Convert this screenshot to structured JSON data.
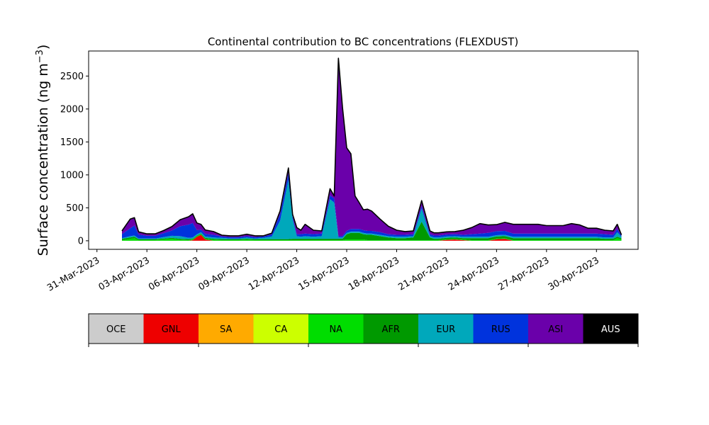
{
  "chart_data": {
    "type": "area",
    "stacked": true,
    "title": "Continental contribution to BC concentrations (FLEXDUST)",
    "ylabel": "Surface concentration (ng m",
    "ylabel_exp": "−3",
    "ylabel_close": ")",
    "xlim": [
      "2023-03-30T12:00",
      "2023-05-02T12:00"
    ],
    "ylim": [
      -130,
      2880
    ],
    "yticks": [
      0,
      500,
      1000,
      1500,
      2000,
      2500
    ],
    "xticks": [
      "31-Mar-2023",
      "03-Apr-2023",
      "06-Apr-2023",
      "09-Apr-2023",
      "12-Apr-2023",
      "15-Apr-2023",
      "18-Apr-2023",
      "21-Apr-2023",
      "24-Apr-2023",
      "27-Apr-2023",
      "30-Apr-2023"
    ],
    "xtick_dates": [
      "2023-03-31",
      "2023-04-03",
      "2023-04-06",
      "2023-04-09",
      "2023-04-12",
      "2023-04-15",
      "2023-04-18",
      "2023-04-21",
      "2023-04-24",
      "2023-04-27",
      "2023-04-30"
    ],
    "legend_placement": "below",
    "grid": false,
    "x": [
      "2023-04-01T12:00",
      "2023-04-02T00:00",
      "2023-04-02T06:00",
      "2023-04-02T12:00",
      "2023-04-03T00:00",
      "2023-04-03T12:00",
      "2023-04-04T00:00",
      "2023-04-04T12:00",
      "2023-04-05T00:00",
      "2023-04-05T12:00",
      "2023-04-05T18:00",
      "2023-04-06T00:00",
      "2023-04-06T06:00",
      "2023-04-06T12:00",
      "2023-04-07T00:00",
      "2023-04-07T12:00",
      "2023-04-08T00:00",
      "2023-04-08T12:00",
      "2023-04-09T00:00",
      "2023-04-09T12:00",
      "2023-04-10T00:00",
      "2023-04-10T12:00",
      "2023-04-11T00:00",
      "2023-04-11T12:00",
      "2023-04-11T18:00",
      "2023-04-12T00:00",
      "2023-04-12T06:00",
      "2023-04-12T12:00",
      "2023-04-13T00:00",
      "2023-04-13T12:00",
      "2023-04-14T00:00",
      "2023-04-14T06:00",
      "2023-04-14T12:00",
      "2023-04-14T18:00",
      "2023-04-15T00:00",
      "2023-04-15T06:00",
      "2023-04-15T12:00",
      "2023-04-15T18:00",
      "2023-04-16T00:00",
      "2023-04-16T06:00",
      "2023-04-16T12:00",
      "2023-04-17T00:00",
      "2023-04-17T12:00",
      "2023-04-18T00:00",
      "2023-04-18T12:00",
      "2023-04-19T00:00",
      "2023-04-19T12:00",
      "2023-04-20T00:00",
      "2023-04-20T06:00",
      "2023-04-20T12:00",
      "2023-04-21T00:00",
      "2023-04-21T12:00",
      "2023-04-22T00:00",
      "2023-04-22T12:00",
      "2023-04-23T00:00",
      "2023-04-23T12:00",
      "2023-04-24T00:00",
      "2023-04-24T12:00",
      "2023-04-25T00:00",
      "2023-04-25T12:00",
      "2023-04-26T00:00",
      "2023-04-26T12:00",
      "2023-04-27T00:00",
      "2023-04-27T12:00",
      "2023-04-28T00:00",
      "2023-04-28T12:00",
      "2023-04-29T00:00",
      "2023-04-29T12:00",
      "2023-04-30T00:00",
      "2023-04-30T12:00",
      "2023-05-01T00:00",
      "2023-05-01T06:00",
      "2023-05-01T12:00"
    ],
    "series": [
      {
        "name": "OCE",
        "color": "#cccccc",
        "values": [
          0,
          0,
          0,
          0,
          0,
          0,
          0,
          0,
          0,
          0,
          0,
          0,
          0,
          0,
          0,
          0,
          0,
          0,
          0,
          0,
          0,
          0,
          0,
          0,
          0,
          0,
          0,
          0,
          0,
          0,
          0,
          0,
          0,
          0,
          0,
          0,
          0,
          0,
          0,
          0,
          0,
          0,
          0,
          0,
          0,
          0,
          0,
          0,
          0,
          0,
          0,
          0,
          0,
          0,
          0,
          0,
          0,
          0,
          0,
          0,
          0,
          0,
          0,
          0,
          0,
          0,
          0,
          0,
          0,
          0,
          0,
          0,
          0
        ]
      },
      {
        "name": "GNL",
        "color": "#ee0000",
        "values": [
          0,
          0,
          0,
          0,
          0,
          0,
          0,
          0,
          0,
          0,
          10,
          60,
          90,
          20,
          0,
          0,
          0,
          0,
          0,
          0,
          0,
          0,
          0,
          0,
          0,
          0,
          0,
          0,
          0,
          0,
          0,
          0,
          0,
          0,
          0,
          0,
          0,
          0,
          0,
          0,
          0,
          0,
          0,
          0,
          0,
          0,
          0,
          0,
          0,
          0,
          15,
          20,
          10,
          0,
          0,
          0,
          25,
          30,
          0,
          0,
          0,
          0,
          0,
          0,
          0,
          0,
          0,
          0,
          0,
          0,
          0,
          0,
          0
        ]
      },
      {
        "name": "SA",
        "color": "#ffaa00",
        "values": [
          0,
          0,
          0,
          0,
          0,
          0,
          0,
          0,
          0,
          0,
          0,
          0,
          0,
          0,
          0,
          0,
          0,
          0,
          0,
          0,
          0,
          0,
          0,
          0,
          0,
          0,
          0,
          0,
          0,
          0,
          0,
          0,
          0,
          0,
          0,
          0,
          0,
          0,
          0,
          0,
          0,
          0,
          0,
          0,
          0,
          0,
          0,
          0,
          0,
          0,
          0,
          0,
          0,
          0,
          0,
          0,
          0,
          0,
          0,
          0,
          0,
          0,
          0,
          0,
          0,
          0,
          0,
          0,
          0,
          0,
          0,
          0,
          0
        ]
      },
      {
        "name": "CA",
        "color": "#ccff00",
        "values": [
          0,
          0,
          0,
          0,
          0,
          0,
          0,
          0,
          0,
          0,
          0,
          0,
          0,
          0,
          0,
          0,
          0,
          0,
          0,
          0,
          0,
          0,
          0,
          0,
          0,
          0,
          0,
          0,
          0,
          0,
          0,
          0,
          0,
          0,
          0,
          0,
          0,
          0,
          0,
          0,
          0,
          0,
          0,
          0,
          0,
          0,
          0,
          0,
          0,
          0,
          0,
          0,
          0,
          0,
          0,
          0,
          0,
          0,
          0,
          0,
          0,
          0,
          0,
          0,
          0,
          0,
          0,
          0,
          0,
          0,
          0,
          0,
          0
        ]
      },
      {
        "name": "NA",
        "color": "#00dd00",
        "values": [
          10,
          30,
          40,
          10,
          10,
          10,
          20,
          30,
          15,
          10,
          10,
          10,
          10,
          10,
          15,
          10,
          10,
          10,
          15,
          10,
          10,
          10,
          10,
          10,
          10,
          10,
          10,
          10,
          10,
          10,
          10,
          10,
          10,
          10,
          20,
          20,
          20,
          20,
          20,
          10,
          10,
          10,
          10,
          10,
          10,
          10,
          10,
          10,
          10,
          10,
          10,
          10,
          10,
          10,
          10,
          10,
          10,
          10,
          10,
          10,
          10,
          10,
          10,
          10,
          10,
          10,
          10,
          10,
          10,
          10,
          10,
          40,
          20
        ]
      },
      {
        "name": "AFR",
        "color": "#009900",
        "values": [
          20,
          20,
          20,
          15,
          15,
          15,
          15,
          15,
          15,
          15,
          10,
          10,
          10,
          15,
          15,
          15,
          15,
          15,
          15,
          15,
          15,
          15,
          15,
          15,
          20,
          20,
          20,
          20,
          20,
          20,
          20,
          20,
          20,
          20,
          80,
          100,
          100,
          100,
          80,
          80,
          80,
          60,
          40,
          30,
          30,
          40,
          280,
          40,
          20,
          20,
          20,
          20,
          20,
          30,
          30,
          30,
          30,
          30,
          30,
          30,
          30,
          30,
          30,
          30,
          30,
          30,
          30,
          30,
          30,
          20,
          20,
          20,
          20
        ]
      },
      {
        "name": "EUR",
        "color": "#00a8bb",
        "values": [
          10,
          20,
          20,
          10,
          10,
          10,
          20,
          30,
          40,
          20,
          20,
          20,
          20,
          20,
          20,
          20,
          10,
          10,
          20,
          10,
          20,
          40,
          280,
          900,
          300,
          40,
          30,
          40,
          30,
          40,
          600,
          550,
          20,
          20,
          20,
          20,
          20,
          20,
          20,
          20,
          20,
          20,
          20,
          20,
          20,
          20,
          200,
          20,
          20,
          20,
          20,
          20,
          20,
          20,
          20,
          20,
          20,
          20,
          20,
          20,
          20,
          20,
          20,
          20,
          20,
          20,
          20,
          20,
          20,
          20,
          20,
          70,
          20
        ]
      },
      {
        "name": "RUS",
        "color": "#0033dd",
        "values": [
          60,
          120,
          150,
          60,
          40,
          40,
          60,
          80,
          150,
          200,
          220,
          60,
          40,
          40,
          40,
          20,
          20,
          20,
          20,
          20,
          20,
          30,
          100,
          100,
          40,
          30,
          40,
          40,
          40,
          40,
          60,
          60,
          20,
          20,
          30,
          40,
          40,
          40,
          40,
          40,
          40,
          40,
          30,
          30,
          30,
          30,
          40,
          30,
          30,
          30,
          30,
          30,
          30,
          40,
          50,
          60,
          60,
          60,
          50,
          50,
          50,
          50,
          50,
          50,
          50,
          50,
          50,
          50,
          50,
          50,
          40,
          50,
          20
        ]
      },
      {
        "name": "ASI",
        "color": "#6a00aa",
        "values": [
          50,
          140,
          120,
          40,
          30,
          30,
          40,
          60,
          100,
          120,
          140,
          110,
          80,
          60,
          50,
          20,
          20,
          20,
          30,
          20,
          10,
          20,
          50,
          80,
          30,
          100,
          60,
          140,
          60,
          40,
          100,
          40,
          2700,
          1950,
          1260,
          1140,
          500,
          400,
          310,
          330,
          300,
          200,
          120,
          70,
          50,
          50,
          80,
          50,
          40,
          40,
          40,
          40,
          70,
          100,
          150,
          120,
          100,
          130,
          140,
          140,
          140,
          140,
          120,
          120,
          120,
          150,
          130,
          80,
          80,
          60,
          60,
          70,
          10
        ]
      },
      {
        "name": "AUS",
        "color": "#000000",
        "values": [
          0,
          0,
          0,
          0,
          0,
          0,
          0,
          0,
          0,
          0,
          0,
          0,
          0,
          0,
          0,
          0,
          0,
          0,
          0,
          0,
          0,
          0,
          0,
          0,
          0,
          0,
          0,
          0,
          0,
          0,
          0,
          0,
          0,
          0,
          0,
          0,
          0,
          0,
          0,
          0,
          0,
          0,
          0,
          0,
          0,
          0,
          0,
          0,
          0,
          0,
          0,
          0,
          0,
          0,
          0,
          0,
          0,
          0,
          0,
          0,
          0,
          0,
          0,
          0,
          0,
          0,
          0,
          0,
          0,
          0,
          0,
          0,
          0
        ]
      }
    ],
    "legend": [
      {
        "label": "OCE",
        "color": "#cccccc",
        "text_color": "#000000"
      },
      {
        "label": "GNL",
        "color": "#ee0000",
        "text_color": "#000000"
      },
      {
        "label": "SA",
        "color": "#ffaa00",
        "text_color": "#000000"
      },
      {
        "label": "CA",
        "color": "#ccff00",
        "text_color": "#000000"
      },
      {
        "label": "NA",
        "color": "#00dd00",
        "text_color": "#000000"
      },
      {
        "label": "AFR",
        "color": "#009900",
        "text_color": "#000000"
      },
      {
        "label": "EUR",
        "color": "#00a8bb",
        "text_color": "#000000"
      },
      {
        "label": "RUS",
        "color": "#0033dd",
        "text_color": "#000000"
      },
      {
        "label": "ASI",
        "color": "#6a00aa",
        "text_color": "#000000"
      },
      {
        "label": "AUS",
        "color": "#000000",
        "text_color": "#ffffff"
      }
    ]
  }
}
